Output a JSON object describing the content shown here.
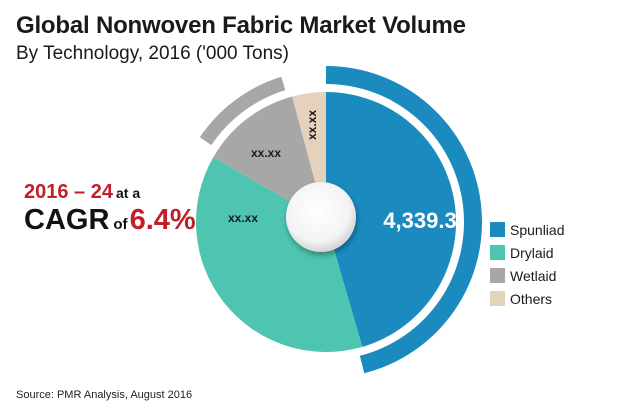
{
  "header": {
    "title": "Global Nonwoven Fabric Market Volume",
    "subtitle": "By Technology, 2016 ('000 Tons)"
  },
  "callout": {
    "years": "2016 – 24",
    "at_a": "at a",
    "cagr_label": "CAGR",
    "of": "of",
    "cagr_value": "6.4%"
  },
  "labels": {
    "spunliad": "4,339.3",
    "drylaid": "xx.xx",
    "wetlaid": "xx.xx",
    "others": "xx.xx"
  },
  "legend": [
    {
      "label": "Spunliad",
      "color": "#1b8bbf"
    },
    {
      "label": "Drylaid",
      "color": "#4ec5b1"
    },
    {
      "label": "Wetlaid",
      "color": "#a7a7a7"
    },
    {
      "label": "Others",
      "color": "#e5d2bd"
    }
  ],
  "source": "Source: PMR Analysis, August 2016",
  "chart_data": {
    "type": "pie",
    "title": "Global Nonwoven Fabric Market Volume",
    "subtitle": "By Technology, 2016 ('000 Tons)",
    "categories": [
      "Spunliad",
      "Drylaid",
      "Wetlaid",
      "Others"
    ],
    "value_labels": [
      "4,339.3",
      "xx.xx",
      "xx.xx",
      "xx.xx"
    ],
    "values": [
      4339.3,
      null,
      null,
      null
    ],
    "approx_share_pct": [
      45.5,
      37.8,
      12.5,
      4.2
    ],
    "colors": [
      "#1b8bbf",
      "#4ec5b1",
      "#a7a7a7",
      "#e5d2bd"
    ],
    "legend_position": "right",
    "annotation": "2016 – 24 at a CAGR of 6.4%",
    "source": "Source: PMR Analysis, August 2016"
  }
}
